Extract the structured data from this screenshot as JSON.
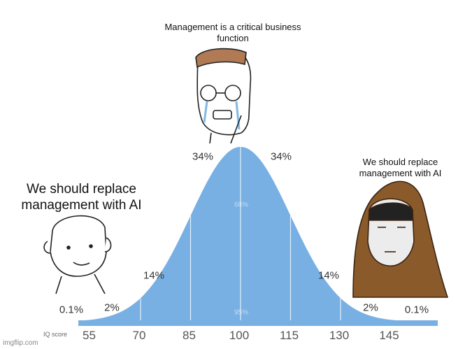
{
  "captions": {
    "top": "Management is a critical business function",
    "left": "We should replace management with AI",
    "right": "We should replace management with AI"
  },
  "curve": {
    "percent_labels": {
      "center_left": "34%",
      "center_right": "34%",
      "mid_left": "14%",
      "mid_right": "14%",
      "outer_left": "2%",
      "outer_right": "2%",
      "tail_left": "0.1%",
      "tail_right": "0.1%",
      "inner_band": "68%",
      "outer_band": "95%"
    },
    "axis_label": "IQ score",
    "iq_scores": [
      55,
      70,
      85,
      100,
      115,
      130,
      145
    ]
  },
  "watermark": "imgflip.com"
}
